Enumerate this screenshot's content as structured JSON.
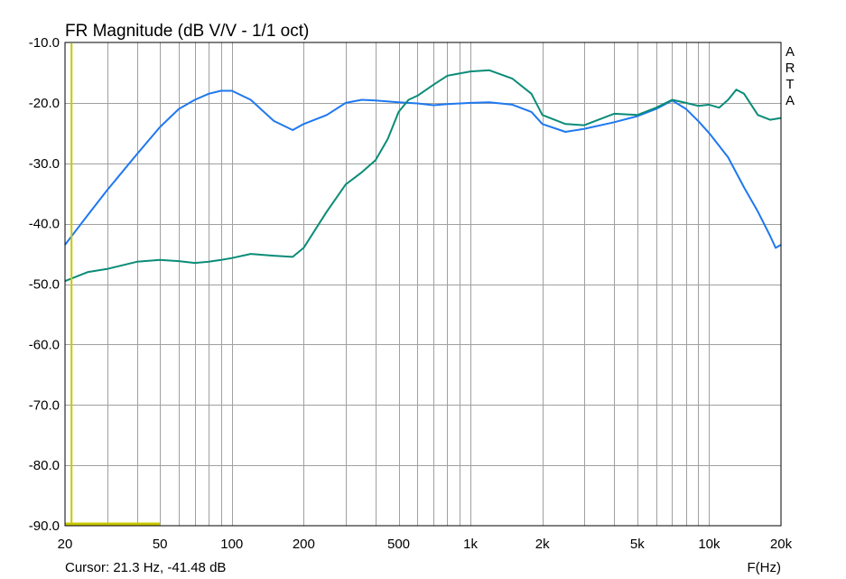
{
  "chart_data": {
    "type": "line",
    "title": "FR Magnitude (dB V/V - 1/1 oct)",
    "xlabel": "F(Hz)",
    "ylabel": "",
    "xscale": "log",
    "xlim": [
      20,
      20000
    ],
    "ylim": [
      -90,
      -10
    ],
    "grid": true,
    "x_ticks": [
      20,
      50,
      100,
      200,
      500,
      1000,
      2000,
      5000,
      10000,
      20000
    ],
    "x_tick_labels": [
      "20",
      "50",
      "100",
      "200",
      "500",
      "1k",
      "2k",
      "5k",
      "10k",
      "20k"
    ],
    "y_ticks": [
      -10,
      -20,
      -30,
      -40,
      -50,
      -60,
      -70,
      -80,
      -90
    ],
    "y_tick_labels": [
      "-10.0",
      "-20.0",
      "-30.0",
      "-40.0",
      "-50.0",
      "-60.0",
      "-70.0",
      "-80.0",
      "-90.0"
    ],
    "brand_letters": [
      "A",
      "R",
      "T",
      "A"
    ],
    "cursor": {
      "label": "Cursor: 21.3 Hz, -41.48 dB",
      "x": 21.3,
      "y": -41.48,
      "color": "#c8c800"
    },
    "series": [
      {
        "color": "#1e78f0",
        "x": [
          20,
          25,
          30,
          40,
          50,
          60,
          70,
          80,
          90,
          100,
          120,
          150,
          180,
          200,
          250,
          300,
          350,
          400,
          500,
          600,
          700,
          800,
          1000,
          1200,
          1500,
          1800,
          2000,
          2500,
          3000,
          4000,
          5000,
          6000,
          7000,
          8000,
          9000,
          10000,
          12000,
          14000,
          16000,
          18000,
          19000,
          20000
        ],
        "y": [
          -43.5,
          -38.5,
          -34.5,
          -28.5,
          -24.0,
          -21.0,
          -19.5,
          -18.5,
          -18.0,
          -18.0,
          -19.5,
          -23.0,
          -24.5,
          -23.5,
          -22.0,
          -20.0,
          -19.5,
          -19.6,
          -19.9,
          -20.1,
          -20.4,
          -20.2,
          -20.0,
          -19.9,
          -20.3,
          -21.5,
          -23.5,
          -24.8,
          -24.3,
          -23.2,
          -22.2,
          -21.0,
          -19.6,
          -21.0,
          -23.0,
          -25.0,
          -29.0,
          -34.0,
          -38.0,
          -42.0,
          -44.0,
          -43.5
        ]
      },
      {
        "color": "#0a8c78",
        "x": [
          20,
          25,
          30,
          40,
          50,
          60,
          70,
          80,
          90,
          100,
          120,
          150,
          180,
          200,
          250,
          300,
          350,
          400,
          450,
          500,
          550,
          600,
          700,
          800,
          1000,
          1200,
          1500,
          1800,
          2000,
          2500,
          3000,
          4000,
          5000,
          6000,
          7000,
          8000,
          9000,
          10000,
          11000,
          12000,
          13000,
          14000,
          16000,
          18000,
          20000
        ],
        "y": [
          -49.5,
          -48.0,
          -47.5,
          -46.3,
          -46.0,
          -46.2,
          -46.5,
          -46.3,
          -46.0,
          -45.7,
          -45.0,
          -45.3,
          -45.5,
          -44.0,
          -38.0,
          -33.5,
          -31.5,
          -29.5,
          -26.0,
          -21.5,
          -19.5,
          -18.8,
          -17.0,
          -15.5,
          -14.8,
          -14.6,
          -16.0,
          -18.5,
          -22.0,
          -23.5,
          -23.7,
          -21.8,
          -22.0,
          -20.8,
          -19.5,
          -20.0,
          -20.5,
          -20.3,
          -20.8,
          -19.5,
          -17.8,
          -18.5,
          -22.0,
          -22.8,
          -22.5
        ]
      }
    ]
  }
}
